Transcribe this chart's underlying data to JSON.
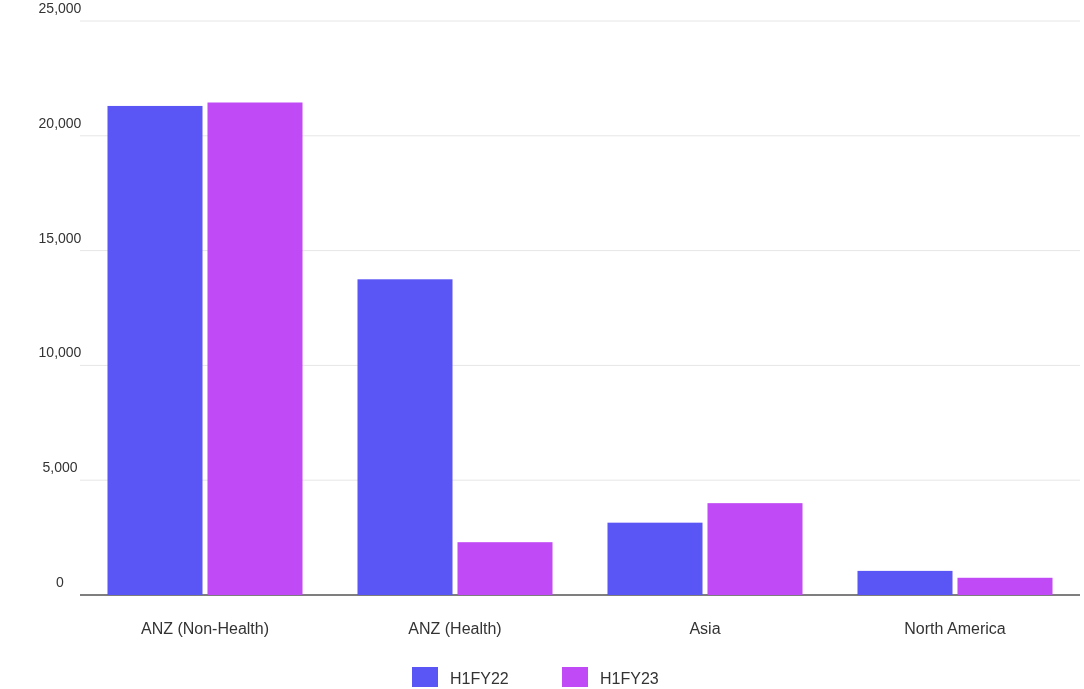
{
  "chart_data": {
    "type": "bar",
    "categories": [
      "ANZ (Non-Health)",
      "ANZ (Health)",
      "Asia",
      "North America"
    ],
    "series": [
      {
        "name": "H1FY22",
        "color": "#5a55f5",
        "values": [
          21300,
          13750,
          3150,
          1050
        ]
      },
      {
        "name": "H1FY23",
        "color": "#c04af5",
        "values": [
          21450,
          2300,
          4000,
          750
        ]
      }
    ],
    "ylim": [
      0,
      25000
    ],
    "yticks": [
      {
        "value": 0,
        "label": "0"
      },
      {
        "value": 5000,
        "label": "5,000"
      },
      {
        "value": 10000,
        "label": "10,000"
      },
      {
        "value": 15000,
        "label": "15,000"
      },
      {
        "value": 20000,
        "label": "20,000"
      },
      {
        "value": 25000,
        "label": "25,000"
      }
    ],
    "grid": "y",
    "legend": "bottom"
  }
}
